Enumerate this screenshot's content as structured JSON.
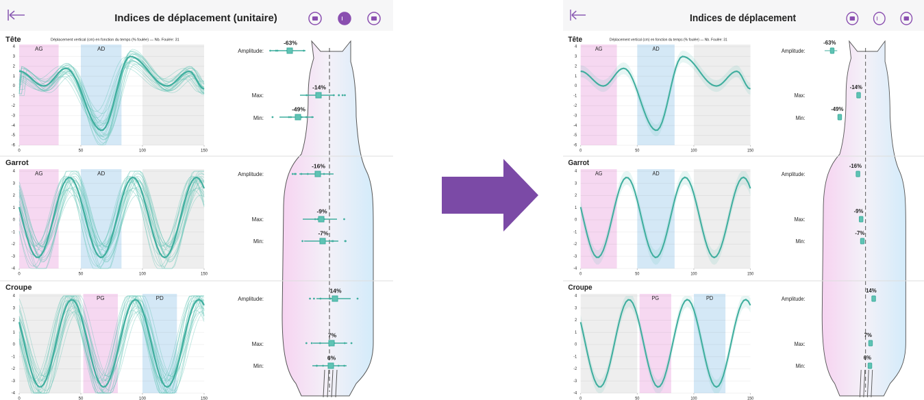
{
  "panels": [
    {
      "title": "Indices de déplacement (unitaire)",
      "subtitle": "Déplacement vertical (cm) en fonction du temps (% foulée) — Nb. Foulée: 31",
      "sections": [
        {
          "name": "Tête",
          "bands": [
            "AG",
            "AD"
          ],
          "yticks": [
            4,
            3,
            2,
            1,
            0,
            -1,
            -2,
            -3,
            -4,
            -5,
            -6
          ],
          "xticks": [
            0,
            50,
            100,
            150
          ],
          "indices": [
            {
              "label": "Amplitude:",
              "value": "-63%"
            },
            {
              "label": "Max:",
              "value": "-14%"
            },
            {
              "label": "Min:",
              "value": "-49%"
            }
          ]
        },
        {
          "name": "Garrot",
          "bands": [
            "AG",
            "AD"
          ],
          "yticks": [
            4,
            3,
            2,
            1,
            0,
            -1,
            -2,
            -3,
            -4
          ],
          "xticks": [
            0,
            50,
            100,
            150
          ],
          "indices": [
            {
              "label": "Amplitude:",
              "value": "-16%"
            },
            {
              "label": "Max:",
              "value": "-9%"
            },
            {
              "label": "Min:",
              "value": "-7%"
            }
          ]
        },
        {
          "name": "Croupe",
          "bands": [
            "PG",
            "PD"
          ],
          "yticks": [
            4,
            3,
            2,
            1,
            0,
            -1,
            -2,
            -3,
            -4
          ],
          "xticks": [
            0,
            50,
            100,
            150
          ],
          "indices": [
            {
              "label": "Amplitude:",
              "value": "14%"
            },
            {
              "label": "Max:",
              "value": "7%"
            },
            {
              "label": "Min:",
              "value": "6%"
            }
          ]
        }
      ]
    },
    {
      "title": "Indices de déplacement",
      "subtitle": "Déplacement vertical (cm) en fonction du temps (% foulée) — Nb. Foulée: 31",
      "sections": [
        {
          "name": "Tête",
          "bands": [
            "AG",
            "AD"
          ],
          "yticks": [
            4,
            3,
            2,
            1,
            0,
            -1,
            -2,
            -3,
            -4,
            -5,
            -6
          ],
          "xticks": [
            0,
            50,
            100,
            150
          ],
          "indices": [
            {
              "label": "Amplitude:",
              "value": "-63%"
            },
            {
              "label": "Max:",
              "value": "-14%"
            },
            {
              "label": "Min:",
              "value": "-49%"
            }
          ]
        },
        {
          "name": "Garrot",
          "bands": [
            "AG",
            "AD"
          ],
          "yticks": [
            4,
            3,
            2,
            1,
            0,
            -1,
            -2,
            -3,
            -4
          ],
          "xticks": [
            0,
            50,
            100,
            150
          ],
          "indices": [
            {
              "label": "Amplitude:",
              "value": "-16%"
            },
            {
              "label": "Max:",
              "value": "-9%"
            },
            {
              "label": "Min:",
              "value": "-7%"
            }
          ]
        },
        {
          "name": "Croupe",
          "bands": [
            "PG",
            "PD"
          ],
          "yticks": [
            4,
            3,
            2,
            1,
            0,
            -1,
            -2,
            -3,
            -4
          ],
          "xticks": [
            0,
            50,
            100,
            150
          ],
          "indices": [
            {
              "label": "Amplitude:",
              "value": "14%"
            },
            {
              "label": "Max:",
              "value": "7%"
            },
            {
              "label": "Min:",
              "value": "6%"
            }
          ]
        }
      ]
    }
  ]
}
